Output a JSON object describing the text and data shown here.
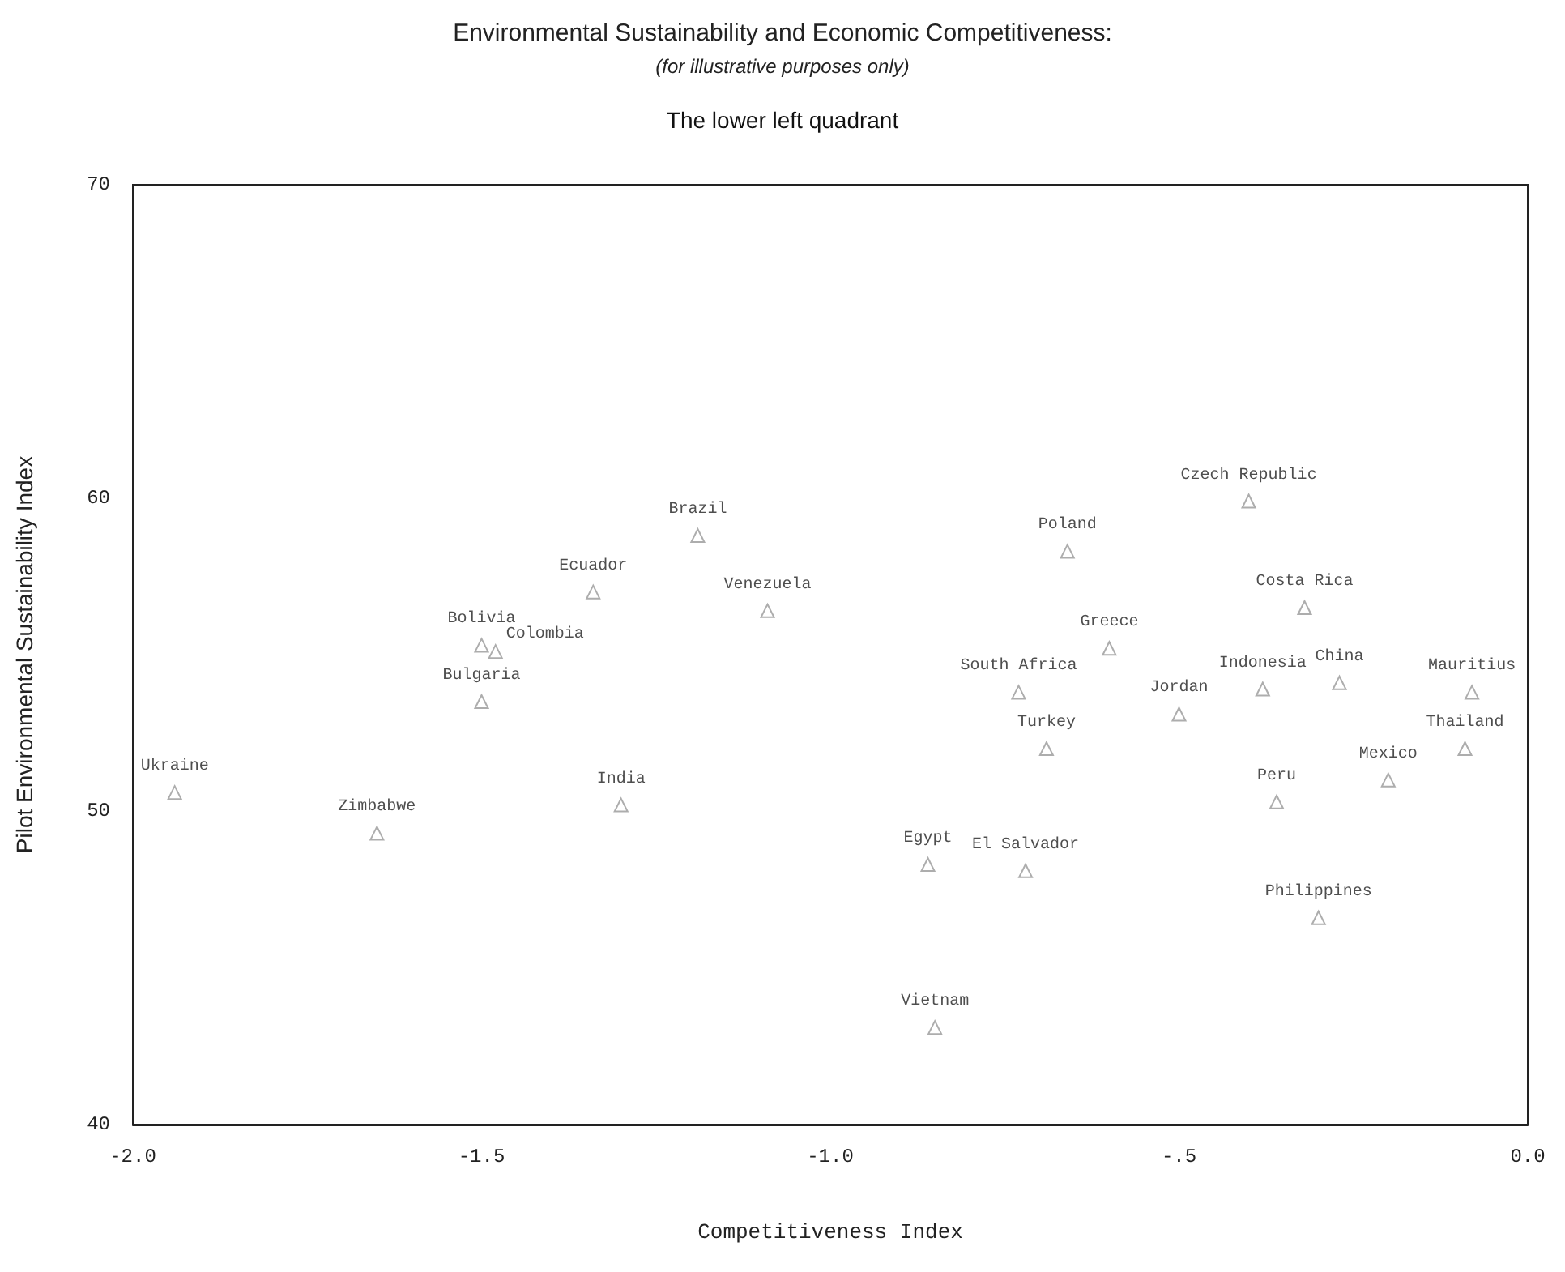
{
  "chart_data": {
    "type": "scatter",
    "title": "Environmental Sustainability and Economic Competitiveness:",
    "subtitle": "(for illustrative purposes only)",
    "annotations": [
      "The lower left quadrant"
    ],
    "xlabel": "Competitiveness Index",
    "ylabel": "Pilot Environmental Sustainability Index",
    "xlim": [
      -2.0,
      0.0
    ],
    "xticks": [
      {
        "value": -2.0,
        "label": "-2.0"
      },
      {
        "value": -1.5,
        "label": "-1.5"
      },
      {
        "value": -1.0,
        "label": "-1.0"
      },
      {
        "value": -0.5,
        "label": "-.5"
      },
      {
        "value": 0.0,
        "label": "0.0"
      }
    ],
    "ylim": [
      40,
      70
    ],
    "yticks": [
      40,
      50,
      60,
      70
    ],
    "grid": false,
    "legend": false,
    "marker": "triangle",
    "series": [
      {
        "name": "Ukraine",
        "color": "#999999",
        "x": [
          -1.94
        ],
        "values": [
          50.6
        ]
      },
      {
        "name": "Zimbabwe",
        "color": "#999999",
        "x": [
          -1.65
        ],
        "values": [
          49.3
        ]
      },
      {
        "name": "India",
        "color": "#999999",
        "x": [
          -1.3
        ],
        "values": [
          50.2
        ]
      },
      {
        "name": "Bulgaria",
        "color": "#999999",
        "x": [
          -1.5
        ],
        "values": [
          53.5
        ]
      },
      {
        "name": "Bolivia",
        "color": "#999999",
        "x": [
          -1.5
        ],
        "values": [
          55.3
        ]
      },
      {
        "name": "Colombia",
        "color": "#999999",
        "x": [
          -1.48
        ],
        "values": [
          55.1
        ]
      },
      {
        "name": "Ecuador",
        "color": "#999999",
        "x": [
          -1.34
        ],
        "values": [
          57.0
        ]
      },
      {
        "name": "Brazil",
        "color": "#999999",
        "x": [
          -1.19
        ],
        "values": [
          58.8
        ]
      },
      {
        "name": "Venezuela",
        "color": "#999999",
        "x": [
          -1.09
        ],
        "values": [
          56.4
        ]
      },
      {
        "name": "Egypt",
        "color": "#999999",
        "x": [
          -0.86
        ],
        "values": [
          48.3
        ]
      },
      {
        "name": "El Salvador",
        "color": "#999999",
        "x": [
          -0.72
        ],
        "values": [
          48.1
        ]
      },
      {
        "name": "Vietnam",
        "color": "#999999",
        "x": [
          -0.85
        ],
        "values": [
          43.1
        ]
      },
      {
        "name": "South Africa",
        "color": "#999999",
        "x": [
          -0.73
        ],
        "values": [
          53.8
        ]
      },
      {
        "name": "Turkey",
        "color": "#999999",
        "x": [
          -0.69
        ],
        "values": [
          52.0
        ]
      },
      {
        "name": "Poland",
        "color": "#999999",
        "x": [
          -0.66
        ],
        "values": [
          58.3
        ]
      },
      {
        "name": "Greece",
        "color": "#999999",
        "x": [
          -0.6
        ],
        "values": [
          55.2
        ]
      },
      {
        "name": "Jordan",
        "color": "#999999",
        "x": [
          -0.5
        ],
        "values": [
          53.1
        ]
      },
      {
        "name": "Czech Republic",
        "color": "#999999",
        "x": [
          -0.4
        ],
        "values": [
          59.9
        ]
      },
      {
        "name": "Costa Rica",
        "color": "#999999",
        "x": [
          -0.32
        ],
        "values": [
          56.5
        ]
      },
      {
        "name": "Indonesia",
        "color": "#999999",
        "x": [
          -0.38
        ],
        "values": [
          53.9
        ]
      },
      {
        "name": "China",
        "color": "#999999",
        "x": [
          -0.27
        ],
        "values": [
          54.1
        ]
      },
      {
        "name": "Peru",
        "color": "#999999",
        "x": [
          -0.36
        ],
        "values": [
          50.3
        ]
      },
      {
        "name": "Mexico",
        "color": "#999999",
        "x": [
          -0.2
        ],
        "values": [
          51.0
        ]
      },
      {
        "name": "Philippines",
        "color": "#999999",
        "x": [
          -0.3
        ],
        "values": [
          46.6
        ]
      },
      {
        "name": "Mauritius",
        "color": "#999999",
        "x": [
          -0.08
        ],
        "values": [
          53.8
        ]
      },
      {
        "name": "Thailand",
        "color": "#999999",
        "x": [
          -0.09
        ],
        "values": [
          52.0
        ]
      }
    ]
  }
}
